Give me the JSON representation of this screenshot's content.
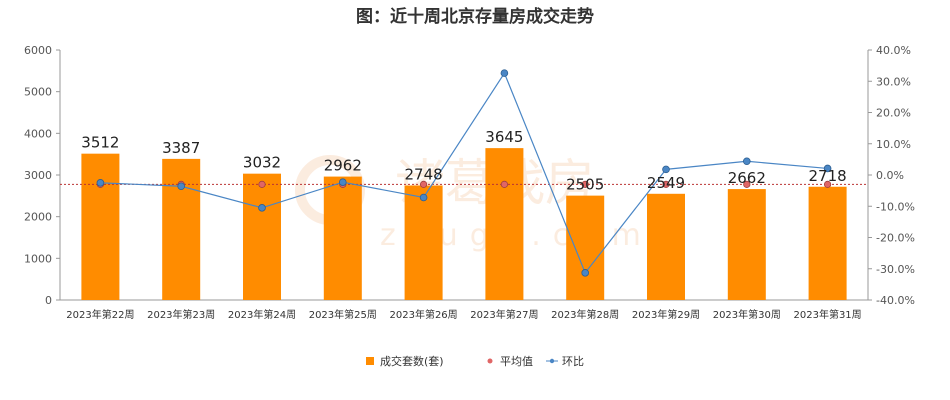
{
  "chart_data": {
    "type": "bar",
    "title": "图：近十周北京存量房成交走势",
    "categories": [
      "2023年第22周",
      "2023年第23周",
      "2023年第24周",
      "2023年第25周",
      "2023年第26周",
      "2023年第27周",
      "2023年第28周",
      "2023年第29周",
      "2023年第30周",
      "2023年第31周"
    ],
    "series": [
      {
        "name": "成交套数(套)",
        "type": "bar",
        "axis": "left",
        "color": "#ff8c00",
        "values": [
          3512,
          3387,
          3032,
          2962,
          2748,
          3645,
          2505,
          2549,
          2662,
          2718
        ]
      },
      {
        "name": "平均值",
        "type": "line",
        "axis": "right",
        "color": "#e06666",
        "values": [
          -3.0,
          -3.0,
          -3.0,
          -3.0,
          -3.0,
          -3.0,
          -3.0,
          -3.0,
          -3.0,
          -3.0
        ]
      },
      {
        "name": "环比",
        "type": "line",
        "axis": "right",
        "color": "#4a86c5",
        "values": [
          -2.5,
          -3.6,
          -10.5,
          -2.3,
          -7.2,
          32.6,
          -31.3,
          1.8,
          4.4,
          2.1
        ]
      }
    ],
    "y_left": {
      "min": 0,
      "max": 6000,
      "ticks": [
        0,
        1000,
        2000,
        3000,
        4000,
        5000,
        6000
      ]
    },
    "y_right": {
      "min": -40,
      "max": 40,
      "ticks": [
        "-40.0%",
        "-30.0%",
        "-20.0%",
        "-10.0%",
        "0.0%",
        "10.0%",
        "20.0%",
        "30.0%",
        "40.0%"
      ]
    },
    "legend_position": "bottom-center",
    "grid": false
  },
  "watermark": {
    "cn": "诸葛找房",
    "en": "zhuge.com"
  }
}
